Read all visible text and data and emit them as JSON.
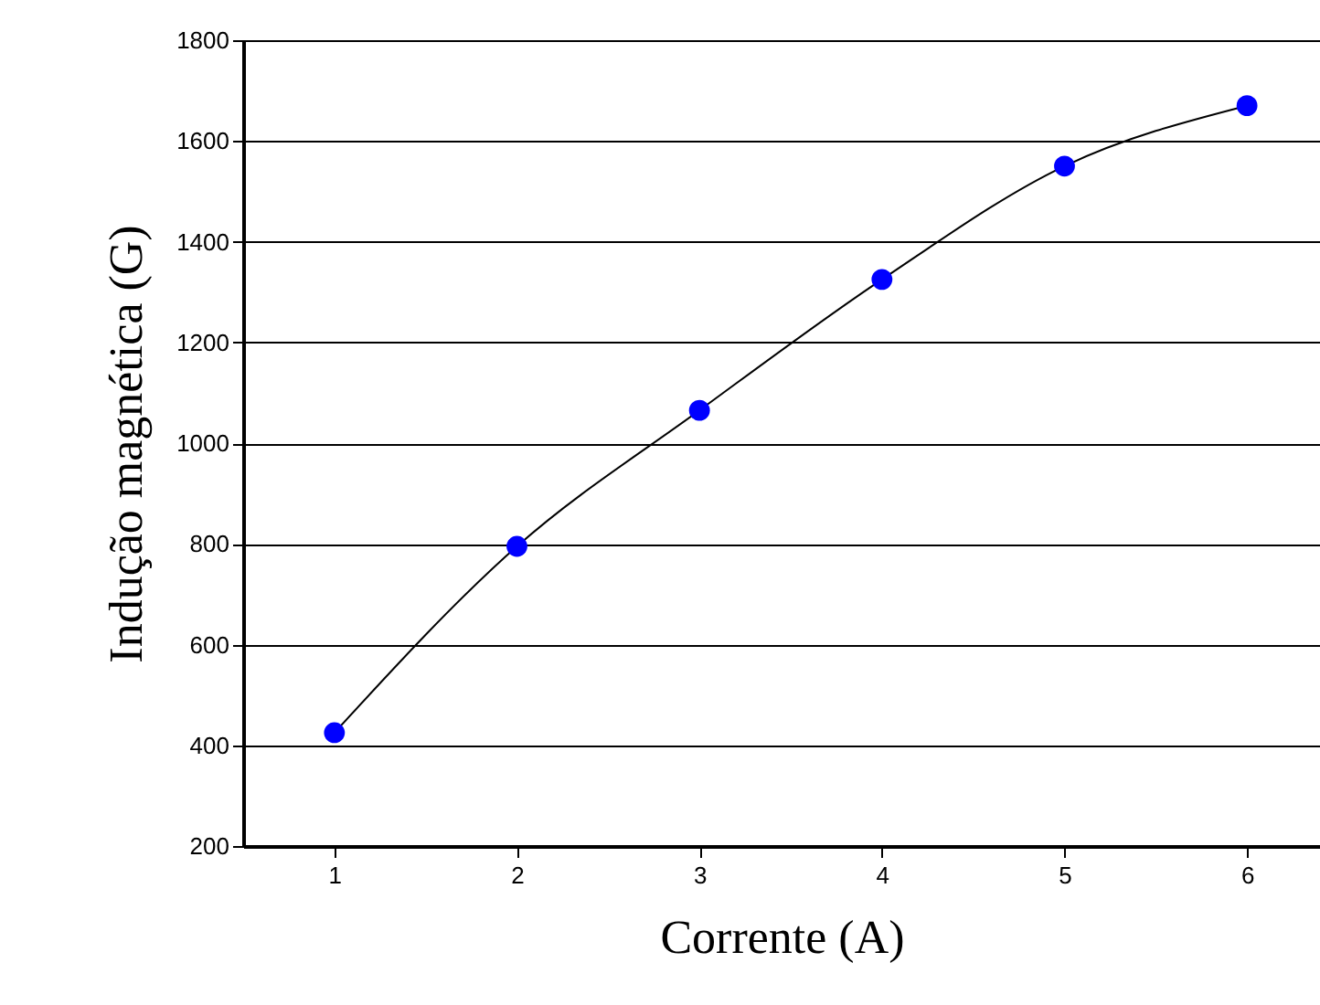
{
  "chart_data": {
    "type": "line",
    "xlabel": "Corrente (A)",
    "ylabel": "Indução magnética (G)",
    "x": [
      1,
      2,
      3,
      4,
      5,
      6
    ],
    "series": [
      {
        "color": "#0000ff",
        "values": [
          425,
          795,
          1065,
          1325,
          1550,
          1670
        ]
      }
    ],
    "xlim": [
      0.5,
      6.4
    ],
    "xticks": [
      1,
      2,
      3,
      4,
      5,
      6
    ],
    "ylim": [
      200,
      1800
    ],
    "yticks": [
      200,
      400,
      600,
      800,
      1000,
      1200,
      1400,
      1600,
      1800
    ],
    "grid": "y",
    "marker": "circle",
    "line_style": "solid"
  }
}
